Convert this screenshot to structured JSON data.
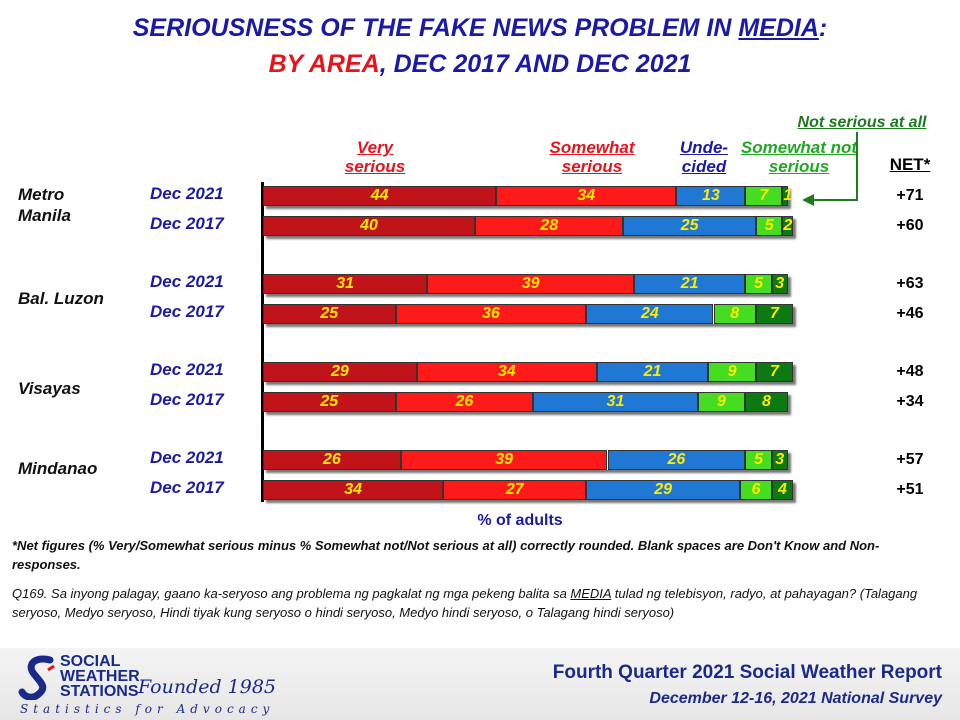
{
  "title": {
    "line1_prefix": "SERIOUSNESS OF THE FAKE NEWS PROBLEM IN ",
    "line1_media": "MEDIA",
    "line1_suffix": ":",
    "line2_red": "BY AREA",
    "line2_rest": ",  DEC 2017 AND DEC 2021"
  },
  "headers": {
    "very": "Very serious",
    "somewhat": "Somewhat serious",
    "undecided": "Unde- cided",
    "somewhat_not": "Somewhat not serious",
    "not_at_all": "Not serious at all",
    "net": "NET*"
  },
  "chart_data": {
    "type": "bar",
    "orientation": "horizontal-stacked",
    "xlabel": "% of adults",
    "series_names": [
      "Very serious",
      "Somewhat serious",
      "Undecided",
      "Somewhat not serious",
      "Not serious at all"
    ],
    "colors": [
      "#c0141a",
      "#ff1a1a",
      "#1f78d4",
      "#44dd22",
      "#0b7a12"
    ],
    "groups": [
      {
        "area": "Metro Manila",
        "rows": [
          {
            "period": "Dec 2021",
            "values": [
              44,
              34,
              13,
              7,
              1
            ],
            "net": "+71"
          },
          {
            "period": "Dec 2017",
            "values": [
              40,
              28,
              25,
              5,
              2
            ],
            "net": "+60"
          }
        ]
      },
      {
        "area": "Bal. Luzon",
        "rows": [
          {
            "period": "Dec 2021",
            "values": [
              31,
              39,
              21,
              5,
              3
            ],
            "net": "+63"
          },
          {
            "period": "Dec 2017",
            "values": [
              25,
              36,
              24,
              8,
              7
            ],
            "net": "+46"
          }
        ]
      },
      {
        "area": "Visayas",
        "rows": [
          {
            "period": "Dec 2021",
            "values": [
              29,
              34,
              21,
              9,
              7
            ],
            "net": "+48"
          },
          {
            "period": "Dec 2017",
            "values": [
              25,
              26,
              31,
              9,
              8
            ],
            "net": "+34"
          }
        ]
      },
      {
        "area": "Mindanao",
        "rows": [
          {
            "period": "Dec 2021",
            "values": [
              26,
              39,
              26,
              5,
              3
            ],
            "net": "+57"
          },
          {
            "period": "Dec 2017",
            "values": [
              34,
              27,
              29,
              6,
              4
            ],
            "net": "+51"
          }
        ]
      }
    ]
  },
  "notes": {
    "net_note": "*Net figures (% Very/Somewhat serious minus % Somewhat not/Not serious at all) correctly rounded. Blank spaces are Don't Know and Non-responses.",
    "q_prefix": "Q169. Sa inyong palagay, gaano ka-seryoso ang problema ng pagkalat ng mga pekeng balita sa ",
    "q_media": "MEDIA",
    "q_suffix": " tulad ng telebisyon, radyo, at pahayagan? (Talagang seryoso, Medyo seryoso, Hindi tiyak kung seryoso o hindi seryoso, Medyo hindi seryoso, o Talagang hindi seryoso)"
  },
  "footer": {
    "logo_line1": "SOCIAL",
    "logo_line2": "WEATHER",
    "logo_line3": "STATIONS",
    "founded": "Founded 1985",
    "tagline": "Statistics for Advocacy",
    "report": "Fourth Quarter 2021 Social Weather Report",
    "survey": "December 12-16, 2021 National Survey"
  }
}
